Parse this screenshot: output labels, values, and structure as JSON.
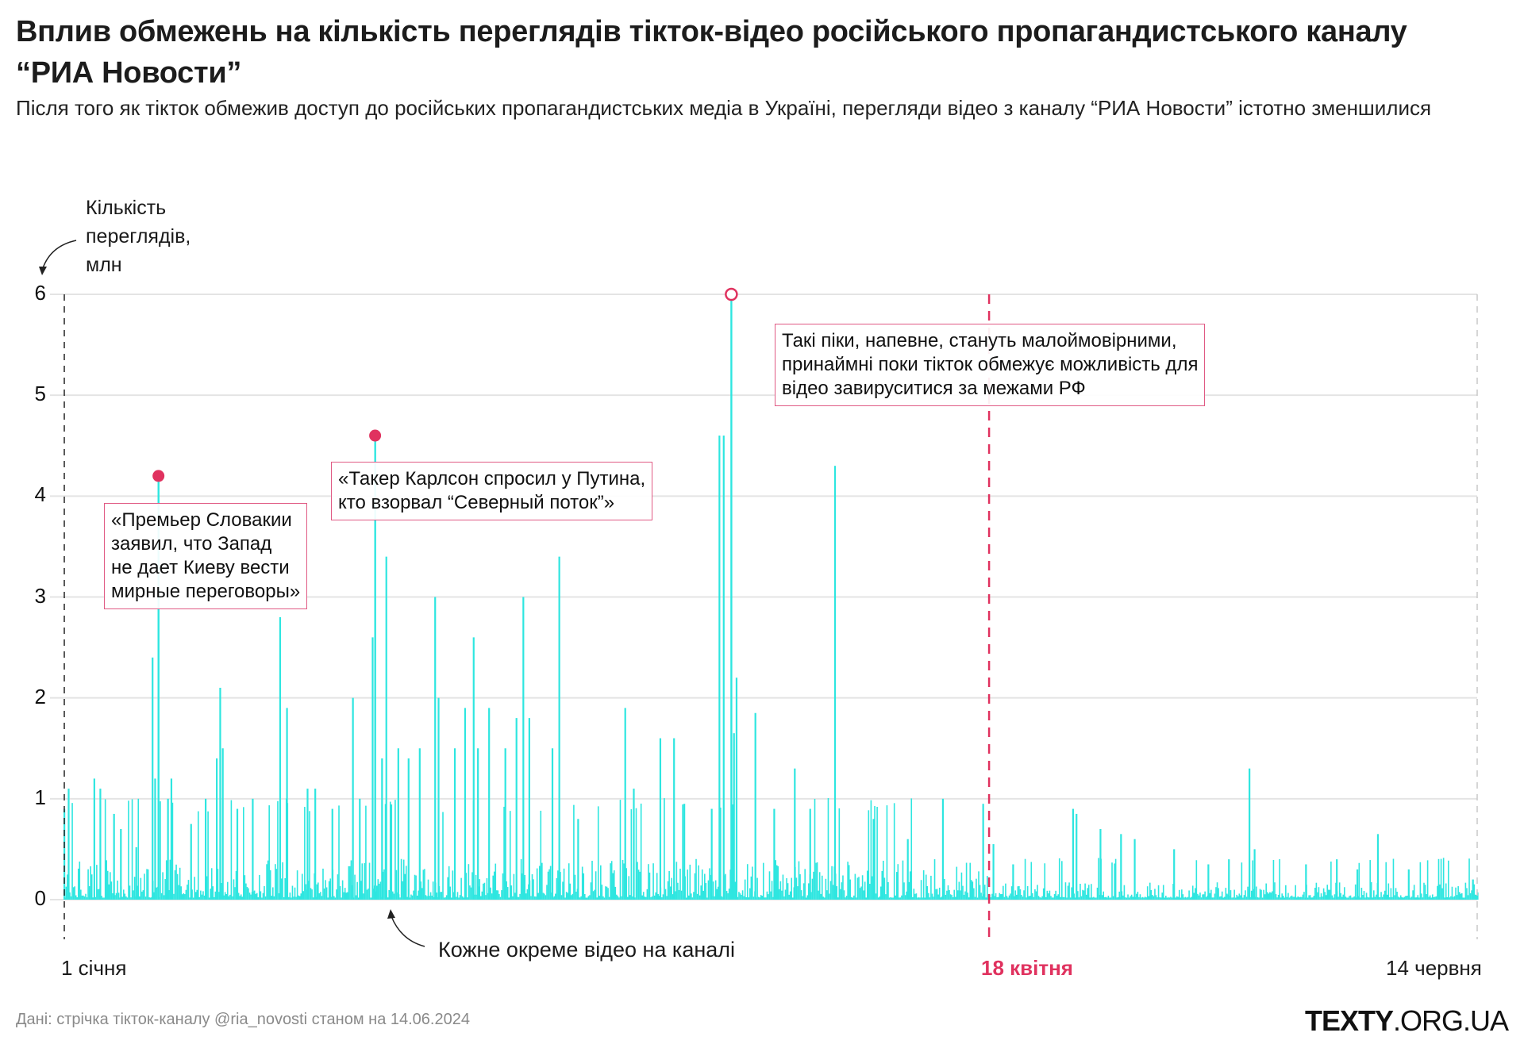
{
  "header": {
    "title": "Вплив обмежень на кількість переглядів тікток-відео російського пропагандистського каналу “РИА Новости”",
    "subtitle": "Після того як тікток обмежив доступ до російських пропагандистських медіа в Україні, перегляди відео з каналу “РИА Новости” істотно зменшилися"
  },
  "footer": {
    "source": "Дані: стрічка тікток-каналу @ria_novosti станом на 14.06.2024",
    "logo_bold": "TEXTY",
    "logo_rest": ".ORG.UA"
  },
  "colors": {
    "bar": "#2ee6e0",
    "accent": "#e0325f",
    "grid": "#e4e4e4",
    "axis_dash": "#222222",
    "end_dash": "#c8c8c8"
  },
  "chart_data": {
    "type": "bar",
    "title": "Вплив обмежень на кількість переглядів тікток-відео російського пропагандистського каналу “РИА Новости”",
    "ylabel": "Кількість переглядів, млн",
    "xlabel": "",
    "ylim": [
      0,
      6
    ],
    "yticks": [
      "0",
      "1",
      "2",
      "3",
      "4",
      "5",
      "6"
    ],
    "x_start": "1 січня",
    "x_end": "14 червня",
    "x_range_days": [
      0,
      165
    ],
    "grid": true,
    "marker": {
      "label": "18 квітня",
      "day": 108
    },
    "series_note": "Кожне окреме відео на каналі",
    "notable_videos": [
      {
        "day": 0,
        "value": 0.9
      },
      {
        "day": 0.5,
        "value": 1.1
      },
      {
        "day": 3.5,
        "value": 1.2
      },
      {
        "day": 4.2,
        "value": 1.1
      },
      {
        "day": 5.8,
        "value": 0.85
      },
      {
        "day": 6.6,
        "value": 0.7
      },
      {
        "day": 8.4,
        "value": 0.52
      },
      {
        "day": 10.3,
        "value": 2.4
      },
      {
        "day": 10.6,
        "value": 1.2
      },
      {
        "day": 11.0,
        "value": 4.2
      },
      {
        "day": 12.5,
        "value": 1.2
      },
      {
        "day": 12.1,
        "value": 1.0
      },
      {
        "day": 14.8,
        "value": 0.75
      },
      {
        "day": 16.5,
        "value": 1.0
      },
      {
        "day": 17.8,
        "value": 1.4
      },
      {
        "day": 18.2,
        "value": 2.1
      },
      {
        "day": 18.5,
        "value": 1.5
      },
      {
        "day": 20.2,
        "value": 0.9
      },
      {
        "day": 22.0,
        "value": 1.0
      },
      {
        "day": 25.2,
        "value": 2.8
      },
      {
        "day": 26.0,
        "value": 1.9
      },
      {
        "day": 28.4,
        "value": 1.1
      },
      {
        "day": 29.3,
        "value": 1.1
      },
      {
        "day": 31.3,
        "value": 0.9
      },
      {
        "day": 33.7,
        "value": 2.0
      },
      {
        "day": 34.5,
        "value": 1.0
      },
      {
        "day": 36.0,
        "value": 2.6
      },
      {
        "day": 36.3,
        "value": 4.6
      },
      {
        "day": 37.1,
        "value": 1.4
      },
      {
        "day": 37.6,
        "value": 3.4
      },
      {
        "day": 39.0,
        "value": 1.5
      },
      {
        "day": 40.2,
        "value": 1.4
      },
      {
        "day": 41.5,
        "value": 1.5
      },
      {
        "day": 43.3,
        "value": 3.0
      },
      {
        "day": 43.7,
        "value": 2.0
      },
      {
        "day": 45.6,
        "value": 1.5
      },
      {
        "day": 46.8,
        "value": 1.9
      },
      {
        "day": 47.8,
        "value": 2.6
      },
      {
        "day": 48.3,
        "value": 1.5
      },
      {
        "day": 49.6,
        "value": 1.9
      },
      {
        "day": 51.5,
        "value": 1.5
      },
      {
        "day": 52.8,
        "value": 1.8
      },
      {
        "day": 53.6,
        "value": 3.0
      },
      {
        "day": 54.3,
        "value": 1.8
      },
      {
        "day": 57.0,
        "value": 1.5
      },
      {
        "day": 57.8,
        "value": 3.4
      },
      {
        "day": 60.0,
        "value": 0.8
      },
      {
        "day": 65.5,
        "value": 1.9
      },
      {
        "day": 66.5,
        "value": 1.1
      },
      {
        "day": 69.6,
        "value": 1.6
      },
      {
        "day": 71.2,
        "value": 1.6
      },
      {
        "day": 72.4,
        "value": 0.95
      },
      {
        "day": 75.6,
        "value": 0.9
      },
      {
        "day": 76.5,
        "value": 4.6
      },
      {
        "day": 77.0,
        "value": 4.6
      },
      {
        "day": 77.9,
        "value": 6.0
      },
      {
        "day": 78.2,
        "value": 1.65
      },
      {
        "day": 78.5,
        "value": 2.2
      },
      {
        "day": 80.7,
        "value": 1.85
      },
      {
        "day": 82.9,
        "value": 0.9
      },
      {
        "day": 85.3,
        "value": 1.3
      },
      {
        "day": 87.1,
        "value": 0.9
      },
      {
        "day": 90.0,
        "value": 4.3
      },
      {
        "day": 94.5,
        "value": 0.8
      },
      {
        "day": 98.5,
        "value": 0.6
      },
      {
        "day": 102.6,
        "value": 1.0
      },
      {
        "day": 107.3,
        "value": 0.95
      },
      {
        "day": 108.5,
        "value": 0.55
      },
      {
        "day": 110.8,
        "value": 0.35
      },
      {
        "day": 117.8,
        "value": 0.9
      },
      {
        "day": 118.2,
        "value": 0.85
      },
      {
        "day": 121.0,
        "value": 0.7
      },
      {
        "day": 123.4,
        "value": 0.65
      },
      {
        "day": 125.0,
        "value": 0.6
      },
      {
        "day": 129.6,
        "value": 0.5
      },
      {
        "day": 133.6,
        "value": 0.35
      },
      {
        "day": 136.0,
        "value": 0.4
      },
      {
        "day": 138.4,
        "value": 1.3
      },
      {
        "day": 139.0,
        "value": 0.5
      },
      {
        "day": 145.0,
        "value": 0.35
      },
      {
        "day": 148.6,
        "value": 0.4
      },
      {
        "day": 151.0,
        "value": 0.3
      },
      {
        "day": 153.4,
        "value": 0.65
      },
      {
        "day": 157.0,
        "value": 0.3
      },
      {
        "day": 160.5,
        "value": 0.15
      },
      {
        "day": 164.5,
        "value": 0.2
      }
    ],
    "background_level": {
      "before_marker_max": 0.45,
      "after_marker_max": 0.18,
      "videos_per_day": 7,
      "seed": 42
    },
    "annotations": [
      {
        "day": 11.0,
        "value": 4.2,
        "style": "filled",
        "text_lines": [
          "«Премьер Словакии",
          "заявил, что Запад",
          "не дает Киеву вести",
          "мирные переговоры»"
        ]
      },
      {
        "day": 36.3,
        "value": 4.6,
        "style": "filled",
        "text_lines": [
          "«Такер Карлсон спросил у Путина,",
          "кто взорвал “Северный поток”»"
        ]
      },
      {
        "day": 77.9,
        "value": 6.0,
        "style": "ring",
        "text_lines": [
          "Такі піки, напевне, стануть малоймовірними,",
          "принаймні поки тікток обмежує можливість для",
          "відео завируситися за межами РФ"
        ]
      }
    ]
  }
}
